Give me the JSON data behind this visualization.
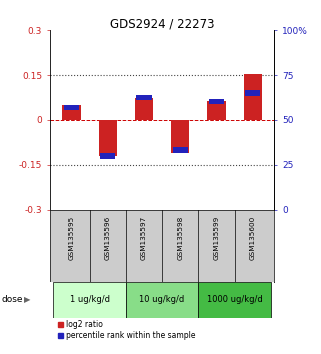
{
  "title": "GDS2924 / 22273",
  "samples": [
    "GSM135595",
    "GSM135596",
    "GSM135597",
    "GSM135598",
    "GSM135599",
    "GSM135600"
  ],
  "log2_ratio": [
    0.05,
    -0.12,
    0.075,
    -0.11,
    0.065,
    0.155
  ],
  "percentile_rank_scaled": [
    0.042,
    -0.12,
    0.075,
    -0.1,
    0.062,
    0.09
  ],
  "ylim_left": [
    -0.3,
    0.3
  ],
  "ylim_right": [
    0,
    100
  ],
  "yticks_left": [
    -0.3,
    -0.15,
    0,
    0.15,
    0.3
  ],
  "yticks_right": [
    0,
    25,
    50,
    75,
    100
  ],
  "ytick_labels_left": [
    "-0.3",
    "-0.15",
    "0",
    "0.15",
    "0.3"
  ],
  "ytick_labels_right": [
    "0",
    "25",
    "50",
    "75",
    "100%"
  ],
  "hlines": [
    0.15,
    -0.15
  ],
  "dose_groups": [
    {
      "label": "1 ug/kg/d",
      "cols": [
        0,
        1
      ],
      "color": "#ccffcc"
    },
    {
      "label": "10 ug/kg/d",
      "cols": [
        2,
        3
      ],
      "color": "#88dd88"
    },
    {
      "label": "1000 ug/kg/d",
      "cols": [
        4,
        5
      ],
      "color": "#44bb44"
    }
  ],
  "bar_width": 0.5,
  "bar_color_red": "#cc2222",
  "bar_color_blue": "#2222bb",
  "zero_line_color": "#cc0000",
  "dotted_line_color": "#444444",
  "bg_sample_row": "#cccccc",
  "legend_red_label": "log2 ratio",
  "legend_blue_label": "percentile rank within the sample",
  "dose_label": "dose"
}
